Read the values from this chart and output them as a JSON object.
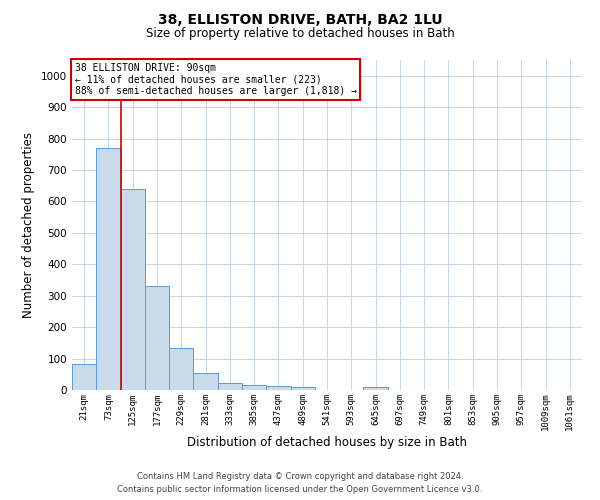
{
  "title": "38, ELLISTON DRIVE, BATH, BA2 1LU",
  "subtitle": "Size of property relative to detached houses in Bath",
  "xlabel": "Distribution of detached houses by size in Bath",
  "ylabel": "Number of detached properties",
  "bar_labels": [
    "21sqm",
    "73sqm",
    "125sqm",
    "177sqm",
    "229sqm",
    "281sqm",
    "333sqm",
    "385sqm",
    "437sqm",
    "489sqm",
    "541sqm",
    "593sqm",
    "645sqm",
    "697sqm",
    "749sqm",
    "801sqm",
    "853sqm",
    "905sqm",
    "957sqm",
    "1009sqm",
    "1061sqm"
  ],
  "bar_values": [
    82,
    770,
    640,
    330,
    133,
    55,
    22,
    17,
    13,
    8,
    0,
    0,
    9,
    0,
    0,
    0,
    0,
    0,
    0,
    0,
    0
  ],
  "bar_color": "#c9daea",
  "bar_edge_color": "#5b9bd5",
  "grid_color": "#c8d4e3",
  "background_color": "#ffffff",
  "annotation_box_color": "#ffffff",
  "annotation_border_color": "#cc0000",
  "annotation_line1": "38 ELLISTON DRIVE: 90sqm",
  "annotation_line2": "← 11% of detached houses are smaller (223)",
  "annotation_line3": "88% of semi-detached houses are larger (1,818) →",
  "red_line_x": 1.5,
  "ylim": [
    0,
    1050
  ],
  "yticks": [
    0,
    100,
    200,
    300,
    400,
    500,
    600,
    700,
    800,
    900,
    1000
  ],
  "footnote1": "Contains HM Land Registry data © Crown copyright and database right 2024.",
  "footnote2": "Contains public sector information licensed under the Open Government Licence v3.0."
}
